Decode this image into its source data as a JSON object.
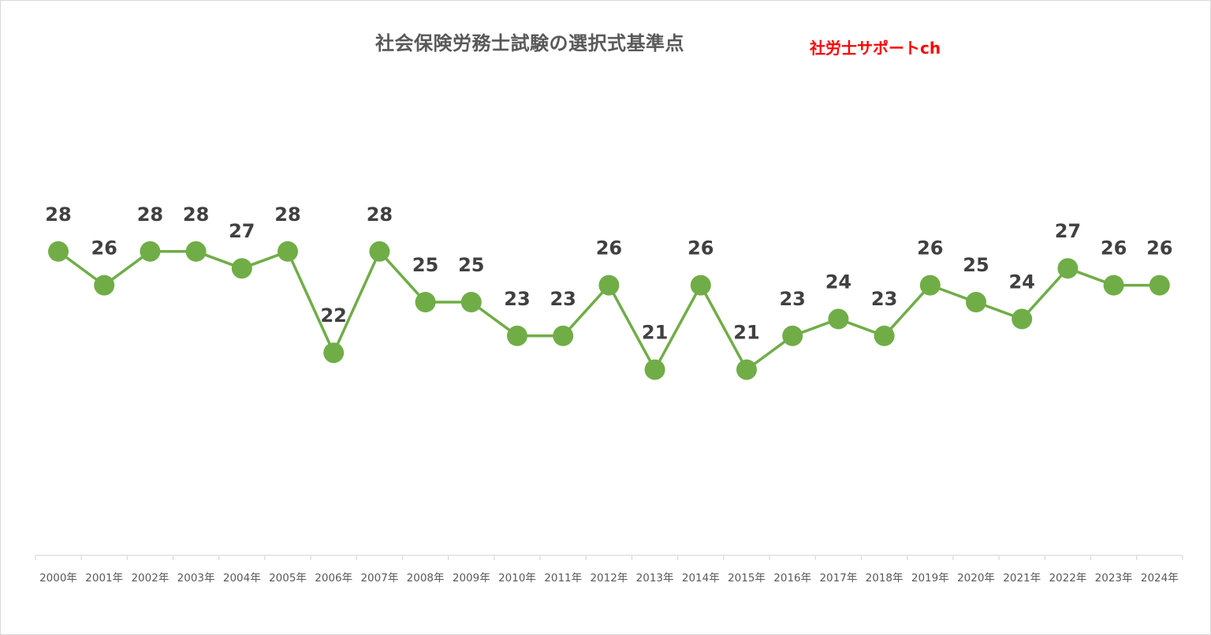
{
  "chart_data": {
    "type": "line",
    "title": "社会保険労務士試験の選択式基準点",
    "watermark": "社労士サポートch",
    "categories": [
      "2000年",
      "2001年",
      "2002年",
      "2003年",
      "2004年",
      "2005年",
      "2006年",
      "2007年",
      "2008年",
      "2009年",
      "2010年",
      "2011年",
      "2012年",
      "2013年",
      "2014年",
      "2015年",
      "2016年",
      "2017年",
      "2018年",
      "2019年",
      "2020年",
      "2021年",
      "2022年",
      "2023年",
      "2024年"
    ],
    "series": [
      {
        "values": [
          28,
          26,
          28,
          28,
          27,
          28,
          22,
          28,
          25,
          25,
          23,
          23,
          26,
          21,
          26,
          21,
          23,
          24,
          23,
          26,
          25,
          24,
          27,
          26,
          26
        ]
      }
    ],
    "value_labels": [
      "28",
      "26",
      "28",
      "28",
      "27",
      "28",
      "22",
      "28",
      "25",
      "25",
      "23",
      "23",
      "26",
      "21",
      "26",
      "21",
      "23",
      "24",
      "23",
      "26",
      "25",
      "24",
      "27",
      "26",
      "26"
    ],
    "ylim": [
      10,
      30
    ],
    "grid": false,
    "legend": "none",
    "colors": {
      "line": "#70ad47",
      "marker": "#70ad47",
      "labels": "#404040",
      "title": "#595959",
      "watermark": "#ff0000",
      "axis": "#d9d9d9"
    }
  }
}
